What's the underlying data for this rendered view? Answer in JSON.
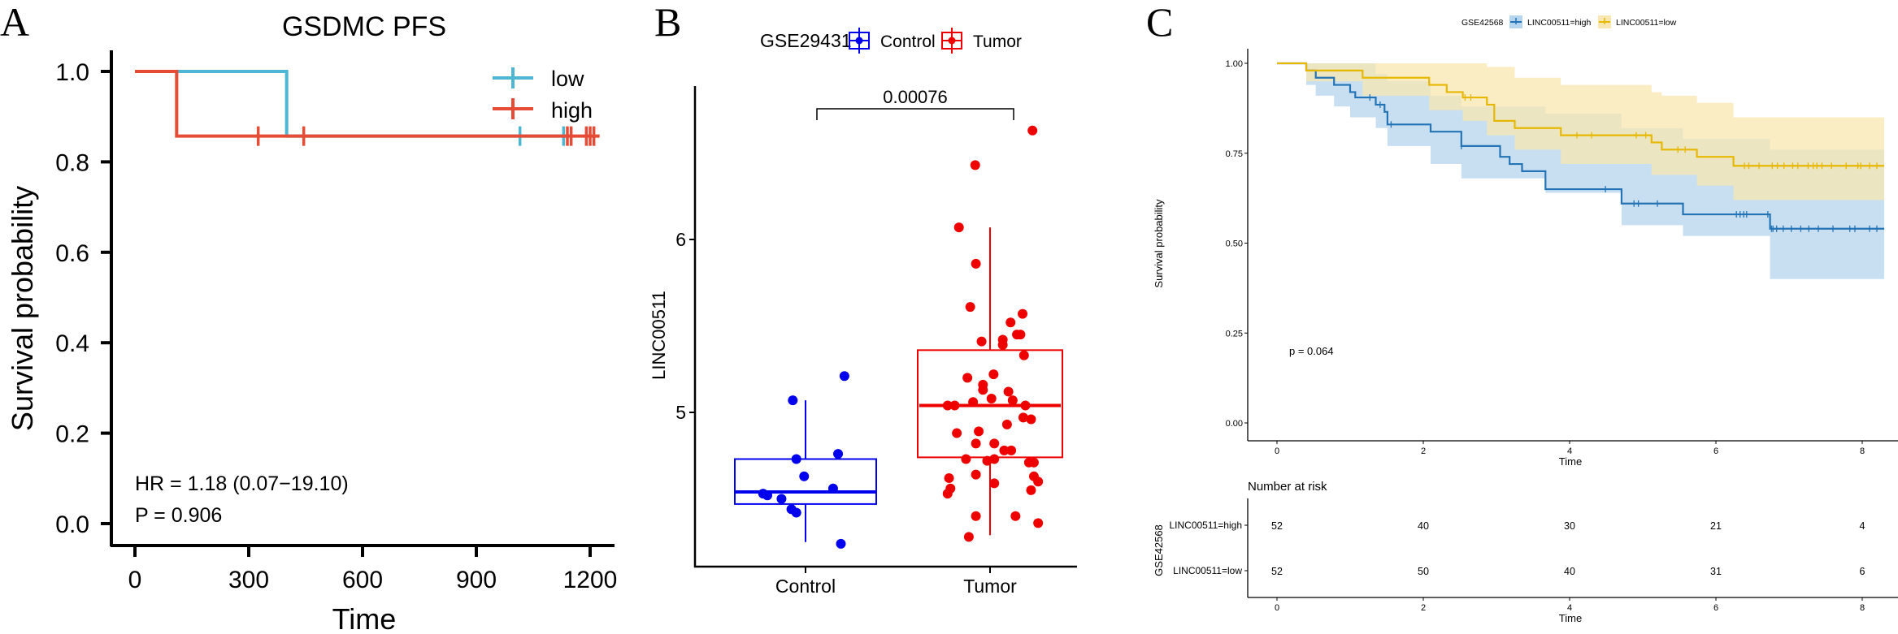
{
  "panels": {
    "A": {
      "letter": "A",
      "chart_data": {
        "type": "line",
        "subtype": "kaplan-meier",
        "title": "GSDMC PFS",
        "xlabel": "Time",
        "ylabel": "Survival probability",
        "xlim": [
          0,
          1250
        ],
        "ylim": [
          0,
          1.0
        ],
        "xticks": [
          0,
          300,
          600,
          900,
          1200
        ],
        "xtick_labels": [
          "0",
          "300",
          "600",
          "900",
          "1200"
        ],
        "yticks": [
          0.0,
          0.2,
          0.4,
          0.6,
          0.8,
          1.0
        ],
        "ytick_labels": [
          "0.0",
          "0.2",
          "0.4",
          "0.6",
          "0.8",
          "1.0"
        ],
        "legend_position": "top-right",
        "series": [
          {
            "name": "low",
            "color": "#4DB6D3",
            "steps": [
              [
                0,
                1.0
              ],
              [
                400,
                1.0
              ],
              [
                400,
                0.857
              ],
              [
                1150,
                0.857
              ]
            ],
            "censor_times": [
              1015,
              1130
            ]
          },
          {
            "name": "high",
            "color": "#E64B35",
            "steps": [
              [
                0,
                1.0
              ],
              [
                110,
                1.0
              ],
              [
                110,
                0.857
              ],
              [
                1225,
                0.857
              ]
            ],
            "censor_times": [
              325,
              445,
              1140,
              1150,
              1190,
              1200,
              1210
            ]
          }
        ],
        "annotations": [
          "HR = 1.18 (0.07−19.10)",
          "P = 0.906"
        ]
      }
    },
    "B": {
      "letter": "B",
      "chart_data": {
        "type": "scatter",
        "subtype": "boxplot-with-jitter",
        "legend_title": "GSE29431",
        "legend_position": "top",
        "xlabel": "",
        "ylabel": "LINC00511",
        "categories": [
          "Control",
          "Tumor"
        ],
        "yticks": [
          5,
          6
        ],
        "ytick_labels": [
          "5",
          "6"
        ],
        "ylim": [
          4.2,
          6.95
        ],
        "significance": {
          "label": "0.00076",
          "groups": [
            "Control",
            "Tumor"
          ]
        },
        "series": [
          {
            "name": "Control",
            "color": "#0000EE",
            "box": {
              "min": 4.25,
              "q1": 4.47,
              "median": 4.54,
              "q3": 4.73,
              "max": 5.07
            },
            "points": [
              [
                -0.18,
                5.07
              ],
              [
                0.55,
                5.21
              ],
              [
                -0.13,
                4.73
              ],
              [
                0.46,
                4.76
              ],
              [
                -0.02,
                4.63
              ],
              [
                0.39,
                4.56
              ],
              [
                -0.6,
                4.53
              ],
              [
                -0.54,
                4.52
              ],
              [
                -0.34,
                4.5
              ],
              [
                -0.2,
                4.44
              ],
              [
                -0.13,
                4.42
              ],
              [
                0.5,
                4.24
              ]
            ]
          },
          {
            "name": "Tumor",
            "color": "#EE0000",
            "box": {
              "min": 4.29,
              "q1": 4.74,
              "median": 5.04,
              "q3": 5.36,
              "max": 6.07
            },
            "points": [
              [
                0.6,
                6.63
              ],
              [
                -0.21,
                6.43
              ],
              [
                -0.44,
                6.07
              ],
              [
                -0.2,
                5.86
              ],
              [
                -0.28,
                5.61
              ],
              [
                0.46,
                5.57
              ],
              [
                0.29,
                5.52
              ],
              [
                0.43,
                5.45
              ],
              [
                0.38,
                5.45
              ],
              [
                0.18,
                5.42
              ],
              [
                0.18,
                5.39
              ],
              [
                -0.12,
                5.41
              ],
              [
                0.48,
                5.33
              ],
              [
                -0.32,
                5.2
              ],
              [
                -0.1,
                5.16
              ],
              [
                -0.1,
                5.13
              ],
              [
                0.26,
                5.12
              ],
              [
                0.02,
                5.08
              ],
              [
                -0.24,
                5.06
              ],
              [
                0.5,
                5.04
              ],
              [
                -0.6,
                5.04
              ],
              [
                -0.5,
                5.04
              ],
              [
                0.47,
                4.97
              ],
              [
                0.58,
                4.96
              ],
              [
                -0.16,
                4.89
              ],
              [
                0.24,
                4.93
              ],
              [
                -0.47,
                4.88
              ],
              [
                0.32,
                5.07
              ],
              [
                0.06,
                4.82
              ],
              [
                -0.2,
                4.82
              ],
              [
                0.2,
                4.78
              ],
              [
                0.3,
                4.78
              ],
              [
                -0.04,
                4.72
              ],
              [
                0.06,
                4.73
              ],
              [
                0.55,
                4.71
              ],
              [
                0.62,
                4.71
              ],
              [
                -0.34,
                4.73
              ],
              [
                -0.2,
                4.64
              ],
              [
                0.62,
                4.63
              ],
              [
                -0.58,
                4.62
              ],
              [
                0.58,
                4.55
              ],
              [
                -0.56,
                4.56
              ],
              [
                0.06,
                4.59
              ],
              [
                0.68,
                4.6
              ],
              [
                -0.6,
                4.53
              ],
              [
                -0.2,
                4.4
              ],
              [
                0.36,
                4.4
              ],
              [
                0.68,
                4.36
              ],
              [
                -0.3,
                4.28
              ],
              [
                0.05,
                5.22
              ]
            ]
          }
        ]
      }
    },
    "C": {
      "letter": "C",
      "chart_data": {
        "type": "line",
        "subtype": "kaplan-meier-with-ci",
        "legend_title": "GSE42568",
        "legend_position": "top",
        "xlabel": "Time",
        "ylabel": "Survival probability",
        "xlim": [
          0,
          8.3
        ],
        "ylim": [
          0,
          1.0
        ],
        "xticks": [
          0,
          2,
          4,
          6,
          8
        ],
        "xtick_labels": [
          "0",
          "2",
          "4",
          "6",
          "8"
        ],
        "yticks": [
          0.0,
          0.25,
          0.5,
          0.75,
          1.0
        ],
        "ytick_labels": [
          "0.00",
          "0.25",
          "0.50",
          "0.75",
          "1.00"
        ],
        "annotation": "p = 0.064",
        "series": [
          {
            "name": "LINC00511=high",
            "color": "#2474B5",
            "fill": "#B5D4EE",
            "steps": [
              [
                0,
                1.0
              ],
              [
                0.4,
                0.98
              ],
              [
                0.53,
                0.96
              ],
              [
                0.78,
                0.94
              ],
              [
                1.0,
                0.92
              ],
              [
                1.07,
                0.905
              ],
              [
                1.35,
                0.885
              ],
              [
                1.47,
                0.865
              ],
              [
                1.51,
                0.83
              ],
              [
                2.1,
                0.81
              ],
              [
                2.52,
                0.77
              ],
              [
                3.05,
                0.74
              ],
              [
                3.18,
                0.72
              ],
              [
                3.35,
                0.7
              ],
              [
                3.67,
                0.65
              ],
              [
                4.71,
                0.61
              ],
              [
                5.55,
                0.58
              ],
              [
                6.74,
                0.54
              ],
              [
                8.3,
                0.54
              ]
            ],
            "ci_lower": [
              [
                0,
                1.0
              ],
              [
                0.4,
                0.94
              ],
              [
                0.53,
                0.91
              ],
              [
                0.78,
                0.88
              ],
              [
                1.0,
                0.85
              ],
              [
                1.35,
                0.82
              ],
              [
                1.51,
                0.77
              ],
              [
                2.1,
                0.72
              ],
              [
                2.52,
                0.68
              ],
              [
                3.67,
                0.64
              ],
              [
                4.71,
                0.55
              ],
              [
                5.55,
                0.52
              ],
              [
                6.74,
                0.4
              ],
              [
                8.3,
                0.4
              ]
            ],
            "ci_upper": [
              [
                0,
                1.0
              ],
              [
                0.4,
                1.0
              ],
              [
                1.0,
                1.0
              ],
              [
                1.35,
                0.97
              ],
              [
                1.51,
                0.95
              ],
              [
                2.1,
                0.91
              ],
              [
                2.52,
                0.88
              ],
              [
                3.67,
                0.86
              ],
              [
                4.71,
                0.82
              ],
              [
                5.55,
                0.79
              ],
              [
                6.74,
                0.76
              ],
              [
                8.3,
                0.76
              ]
            ],
            "censor_times": [
              1.27,
              1.41,
              1.56,
              2.52,
              4.49,
              4.88,
              4.94,
              5.2,
              6.28,
              6.33,
              6.38,
              6.42,
              6.71,
              6.76,
              6.78,
              6.83,
              6.92,
              7.03,
              7.16,
              7.27,
              7.4,
              7.6,
              7.83,
              7.9,
              8.1,
              8.2
            ]
          },
          {
            "name": "LINC00511=low",
            "color": "#E7B800",
            "fill": "#F8E7B0",
            "steps": [
              [
                0,
                1.0
              ],
              [
                0.4,
                0.98
              ],
              [
                1.17,
                0.96
              ],
              [
                2.08,
                0.94
              ],
              [
                2.32,
                0.92
              ],
              [
                2.54,
                0.905
              ],
              [
                2.87,
                0.885
              ],
              [
                2.97,
                0.84
              ],
              [
                3.25,
                0.82
              ],
              [
                3.88,
                0.8
              ],
              [
                5.12,
                0.78
              ],
              [
                5.26,
                0.76
              ],
              [
                5.74,
                0.74
              ],
              [
                6.24,
                0.715
              ],
              [
                8.3,
                0.715
              ]
            ],
            "ci_lower": [
              [
                0,
                1.0
              ],
              [
                0.4,
                0.95
              ],
              [
                1.17,
                0.91
              ],
              [
                2.08,
                0.87
              ],
              [
                2.54,
                0.84
              ],
              [
                2.87,
                0.8
              ],
              [
                3.25,
                0.76
              ],
              [
                3.88,
                0.72
              ],
              [
                5.12,
                0.69
              ],
              [
                5.74,
                0.66
              ],
              [
                6.24,
                0.62
              ],
              [
                8.3,
                0.62
              ]
            ],
            "ci_upper": [
              [
                0,
                1.0
              ],
              [
                2.54,
                1.0
              ],
              [
                2.87,
                0.99
              ],
              [
                3.25,
                0.96
              ],
              [
                3.88,
                0.94
              ],
              [
                5.12,
                0.92
              ],
              [
                5.26,
                0.91
              ],
              [
                5.74,
                0.89
              ],
              [
                6.24,
                0.85
              ],
              [
                8.3,
                0.85
              ]
            ],
            "censor_times": [
              2.57,
              2.65,
              4.1,
              4.3,
              4.91,
              5.04,
              5.48,
              5.58,
              6.39,
              6.45,
              6.59,
              6.77,
              6.84,
              6.93,
              7.05,
              7.12,
              7.26,
              7.33,
              7.38,
              7.45,
              7.58,
              7.78,
              7.94,
              7.98,
              8.1,
              8.2
            ]
          }
        ],
        "risk_table": {
          "title": "Number at risk",
          "strata_title": "GSE42568",
          "xlabel": "Time",
          "times": [
            0,
            2,
            4,
            6,
            8
          ],
          "rows": [
            {
              "label": "LINC00511=high",
              "color": "#2474B5",
              "values": [
                52,
                40,
                30,
                21,
                4
              ]
            },
            {
              "label": "LINC00511=low",
              "color": "#E7B800",
              "values": [
                52,
                50,
                40,
                31,
                6
              ]
            }
          ]
        }
      }
    }
  }
}
